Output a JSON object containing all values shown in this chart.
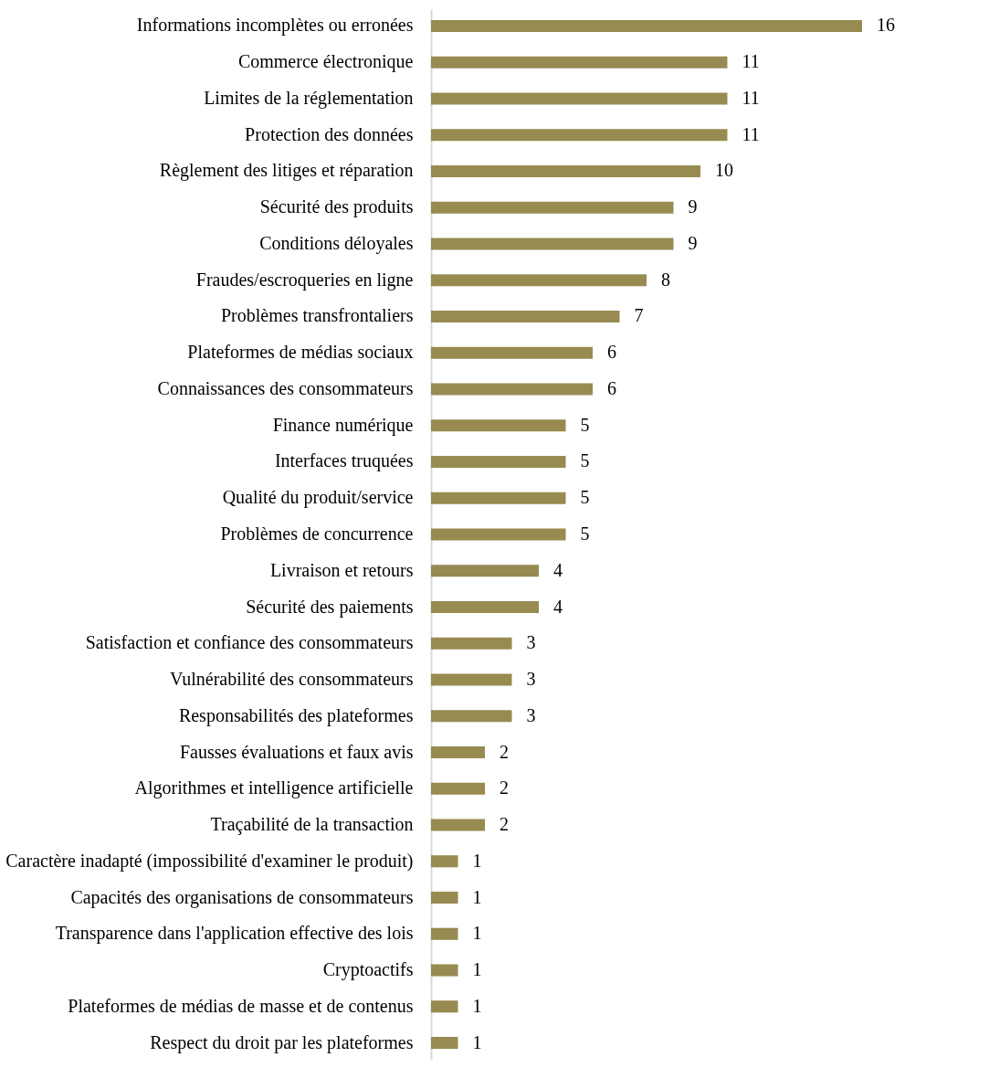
{
  "chart_data": {
    "type": "bar",
    "orientation": "horizontal",
    "data_labels": true,
    "color": "#978b52",
    "categories": [
      "Informations incomplètes ou erronées",
      "Commerce électronique",
      "Limites de la réglementation",
      "Protection des données",
      "Règlement des litiges et réparation",
      "Sécurité des produits",
      "Conditions déloyales",
      "Fraudes/escroqueries en ligne",
      "Problèmes transfrontaliers",
      "Plateformes de médias sociaux",
      "Connaissances des consommateurs",
      "Finance numérique",
      "Interfaces truquées",
      "Qualité du produit/service",
      "Problèmes de concurrence",
      "Livraison et retours",
      "Sécurité des paiements",
      "Satisfaction et confiance des consommateurs",
      "Vulnérabilité des consommateurs",
      "Responsabilités des plateformes",
      "Fausses évaluations et faux avis",
      "Algorithmes et intelligence artificielle",
      "Traçabilité de la transaction",
      "Caractère inadapté (impossibilité d'examiner le produit)",
      "Capacités des organisations de consommateurs",
      "Transparence dans l'application effective des lois",
      "Cryptoactifs",
      "Plateformes de médias de masse et de contenus",
      "Respect du droit par les plateformes"
    ],
    "values": [
      16,
      11,
      11,
      11,
      10,
      9,
      9,
      8,
      7,
      6,
      6,
      5,
      5,
      5,
      5,
      4,
      4,
      3,
      3,
      3,
      2,
      2,
      2,
      1,
      1,
      1,
      1,
      1,
      1
    ]
  }
}
